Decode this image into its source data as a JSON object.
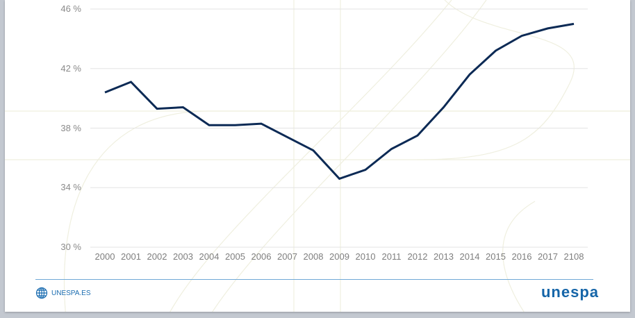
{
  "chart_data": {
    "type": "line",
    "title": "",
    "xlabel": "",
    "ylabel": "",
    "ylim": [
      30,
      46
    ],
    "grid": true,
    "y_ticks": [
      "46 %",
      "42 %",
      "38 %",
      "34 %",
      "30 %"
    ],
    "categories": [
      "2000",
      "2001",
      "2002",
      "2003",
      "2004",
      "2005",
      "2006",
      "2007",
      "2008",
      "2009",
      "2010",
      "2011",
      "2012",
      "2013",
      "2014",
      "2015",
      "2016",
      "2017",
      "2108"
    ],
    "series": [
      {
        "name": "",
        "color": "#0c2a55",
        "values": [
          40.4,
          41.1,
          39.3,
          39.4,
          38.2,
          38.2,
          38.3,
          37.4,
          36.5,
          34.6,
          35.2,
          36.6,
          37.5,
          39.4,
          41.6,
          43.2,
          44.2,
          44.7,
          45.0
        ]
      }
    ]
  },
  "footer": {
    "site_label": "UNESPA.ES",
    "logo_text": "unespa",
    "accent_color": "#1565a8"
  },
  "icons": {
    "globe": "globe-icon"
  }
}
